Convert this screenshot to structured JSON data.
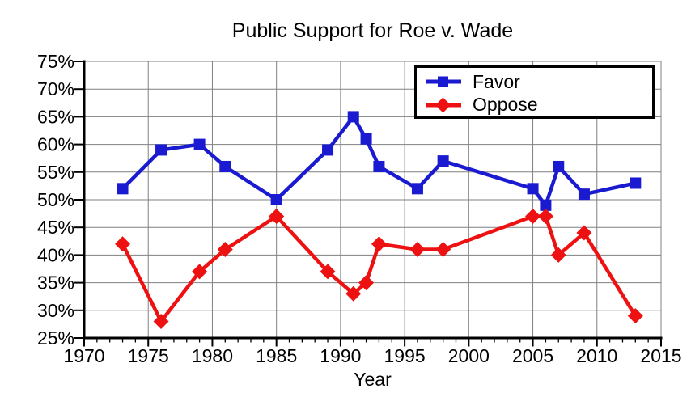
{
  "chart_data": {
    "type": "line",
    "title": "Public Support for Roe v. Wade",
    "xlabel": "Year",
    "ylabel": "",
    "grid": true,
    "legend_position": "top-right",
    "x": [
      1973,
      1976,
      1979,
      1981,
      1985,
      1989,
      1991,
      1992,
      1993,
      1996,
      1998,
      2005,
      2006,
      2007,
      2009,
      2013
    ],
    "series": [
      {
        "name": "Favor",
        "marker": "square",
        "color": "#1a1ad0",
        "values": [
          52,
          59,
          60,
          56,
          50,
          59,
          65,
          61,
          56,
          52,
          57,
          52,
          49,
          56,
          51,
          53
        ]
      },
      {
        "name": "Oppose",
        "marker": "diamond",
        "color": "#ee1111",
        "values": [
          42,
          28,
          37,
          41,
          47,
          37,
          33,
          35,
          42,
          41,
          41,
          47,
          47,
          40,
          44,
          29
        ]
      }
    ],
    "y_axis": {
      "min": 25,
      "max": 75,
      "tick_step": 5,
      "tick_labels": [
        "25%",
        "30%",
        "35%",
        "40%",
        "45%",
        "50%",
        "55%",
        "60%",
        "65%",
        "70%",
        "75%"
      ]
    },
    "x_axis": {
      "min": 1970,
      "max": 2015,
      "tick_step": 5,
      "minor_tick_step": 1,
      "tick_labels": [
        "1970",
        "1975",
        "1980",
        "1985",
        "1990",
        "1995",
        "2000",
        "2005",
        "2010",
        "2015"
      ]
    },
    "colors": {
      "grid": "#808080",
      "axis": "#000000",
      "background": "#ffffff",
      "legend_border": "#000000",
      "legend_background": "#ffffff"
    }
  }
}
